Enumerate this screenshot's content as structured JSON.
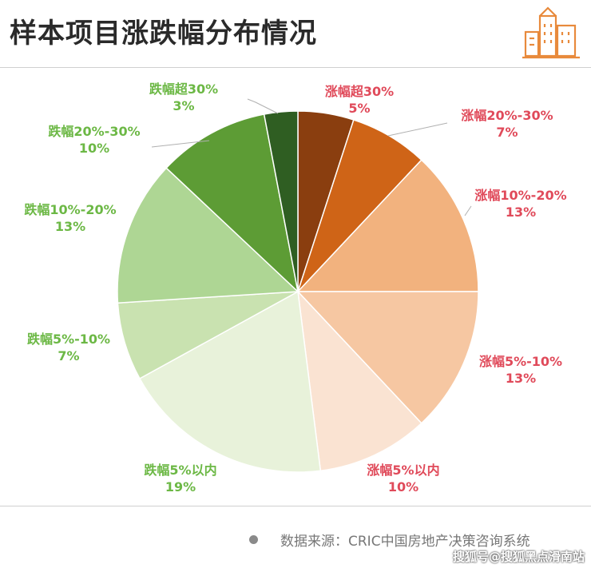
{
  "title": "样本项目涨跌幅分布情况",
  "source": "数据来源：CRIC中国房地产决策咨询系统",
  "watermark": "搜狐号@搜狐黑点滑南站",
  "chart_data": {
    "type": "pie",
    "unit": "%",
    "slices": [
      {
        "label": "涨幅超30%",
        "value": 5,
        "value_label": "5%",
        "color": "#8a3e0f",
        "label_color": "#e04a5a"
      },
      {
        "label": "涨幅20%-30%",
        "value": 7,
        "value_label": "7%",
        "color": "#cf6417",
        "label_color": "#e04a5a"
      },
      {
        "label": "涨幅10%-20%",
        "value": 13,
        "value_label": "13%",
        "color": "#f2b27e",
        "label_color": "#e04a5a"
      },
      {
        "label": "涨幅5%-10%",
        "value": 13,
        "value_label": "13%",
        "color": "#f6c7a2",
        "label_color": "#e04a5a"
      },
      {
        "label": "涨幅5%以内",
        "value": 10,
        "value_label": "10%",
        "color": "#fae3d2",
        "label_color": "#e04a5a"
      },
      {
        "label": "跌幅5%以内",
        "value": 19,
        "value_label": "19%",
        "color": "#e8f2da",
        "label_color": "#6cb845"
      },
      {
        "label": "跌幅5%-10%",
        "value": 7,
        "value_label": "7%",
        "color": "#c9e2b0",
        "label_color": "#6cb845"
      },
      {
        "label": "跌幅10%-20%",
        "value": 13,
        "value_label": "13%",
        "color": "#aed694",
        "label_color": "#6cb845"
      },
      {
        "label": "跌幅20%-30%",
        "value": 10,
        "value_label": "10%",
        "color": "#5d9c35",
        "label_color": "#6cb845"
      },
      {
        "label": "跌幅超30%",
        "value": 3,
        "value_label": "3%",
        "color": "#2f5e22",
        "label_color": "#6cb845"
      }
    ]
  }
}
